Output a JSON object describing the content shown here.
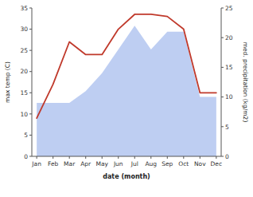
{
  "chart_data": {
    "type": "line",
    "categories": [
      "Jan",
      "Feb",
      "Mar",
      "Apr",
      "May",
      "Jun",
      "Jul",
      "Aug",
      "Sep",
      "Oct",
      "Nov",
      "Dec"
    ],
    "xlabel": "date (month)",
    "ylabel": "max temp (C)",
    "y2label": "med. precipitation (kg/m2)",
    "ylim": [
      0,
      35
    ],
    "yticks": [
      0,
      5,
      10,
      15,
      20,
      25,
      30,
      35
    ],
    "y2lim": [
      0,
      25
    ],
    "y2ticks": [
      0,
      5,
      10,
      15,
      20,
      25
    ],
    "series": [
      {
        "type": "area",
        "axis": "y2",
        "color": "#b3c6f0",
        "values": [
          9,
          9,
          9,
          11,
          14,
          18,
          22,
          18,
          21,
          21,
          10,
          10
        ]
      },
      {
        "type": "line",
        "color": "#c0392b",
        "values": [
          9,
          17,
          27,
          24,
          24,
          30,
          33.5,
          33.5,
          33,
          30,
          15,
          15
        ]
      }
    ]
  }
}
